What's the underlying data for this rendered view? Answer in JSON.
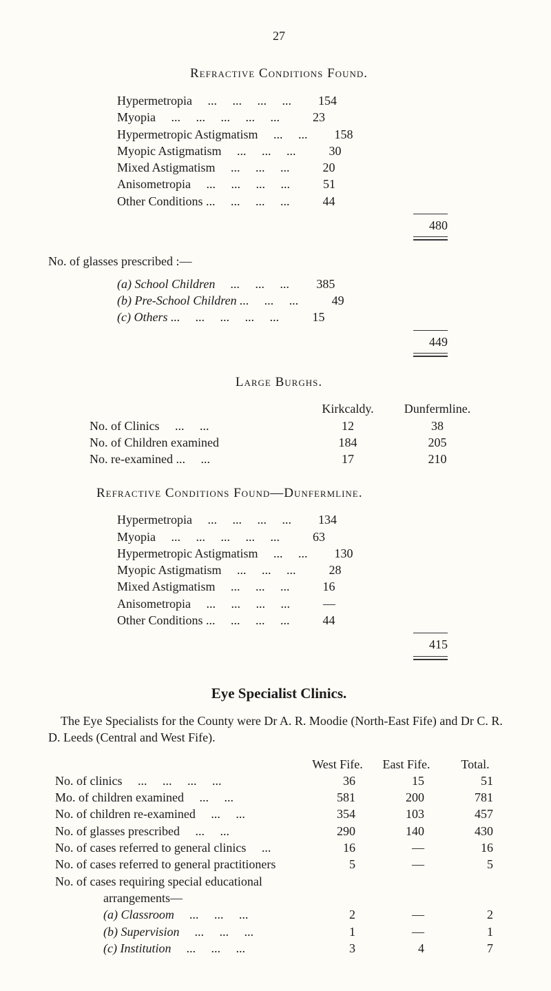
{
  "page_number": "27",
  "refractive1": {
    "title": "Refractive Conditions Found.",
    "rows": [
      {
        "label": "Hypermetropia     ...     ...     ...     ...",
        "val": "154"
      },
      {
        "label": "Myopia     ...     ...     ...     ...     ...",
        "val": "23"
      },
      {
        "label": "Hypermetropic Astigmatism     ...     ...",
        "val": "158"
      },
      {
        "label": "Myopic Astigmatism     ...     ...     ...",
        "val": "30"
      },
      {
        "label": "Mixed Astigmatism     ...     ...     ...",
        "val": "20"
      },
      {
        "label": "Anisometropia     ...     ...     ...     ...",
        "val": "51"
      },
      {
        "label": "Other Conditions ...     ...     ...     ...",
        "val": "44"
      }
    ],
    "total": "480"
  },
  "glasses": {
    "title": "No. of glasses prescribed :—",
    "rows": [
      {
        "label": "(a) School Children     ...     ...     ...",
        "val": "385"
      },
      {
        "label": "(b) Pre-School Children ...     ...     ...",
        "val": "49"
      },
      {
        "label": "(c) Others ...     ...     ...     ...     ...",
        "val": "15"
      }
    ],
    "total": "449"
  },
  "burghs": {
    "title": "Large Burghs.",
    "col1": "Kirkcaldy.",
    "col2": "Dunfermline.",
    "rows": [
      {
        "label": "No. of Clinics     ...     ...",
        "c1": "12",
        "c2": "38"
      },
      {
        "label": "No. of Children examined",
        "c1": "184",
        "c2": "205"
      },
      {
        "label": "No. re-examined ...     ...",
        "c1": "17",
        "c2": "210"
      }
    ]
  },
  "refractive2": {
    "title": "Refractive Conditions Found—Dunfermline.",
    "rows": [
      {
        "label": "Hypermetropia     ...     ...     ...     ...",
        "val": "134"
      },
      {
        "label": "Myopia     ...     ...     ...     ...     ...",
        "val": "63"
      },
      {
        "label": "Hypermetropic Astigmatism     ...     ...",
        "val": "130"
      },
      {
        "label": "Myopic Astigmatism     ...     ...     ...",
        "val": "28"
      },
      {
        "label": "Mixed Astigmatism     ...     ...     ...",
        "val": "16"
      },
      {
        "label": "Anisometropia     ...     ...     ...     ...",
        "val": "—"
      },
      {
        "label": "Other Conditions ...     ...     ...     ...",
        "val": "44"
      }
    ],
    "total": "415"
  },
  "eye": {
    "title": "Eye Specialist Clinics.",
    "para": "The Eye Specialists for the County were Dr A. R. Moodie (North-East Fife) and Dr C. R. D. Leeds (Central and West Fife).",
    "col1": "West Fife.",
    "col2": "East Fife.",
    "col3": "Total.",
    "rows": [
      {
        "label": "No. of clinics     ...     ...     ...     ...",
        "c1": "36",
        "c2": "15",
        "c3": "51"
      },
      {
        "label": "Mo. of children examined     ...     ...",
        "c1": "581",
        "c2": "200",
        "c3": "781"
      },
      {
        "label": "No. of children re-examined     ...     ...",
        "c1": "354",
        "c2": "103",
        "c3": "457"
      },
      {
        "label": "No. of glasses prescribed     ...     ...",
        "c1": "290",
        "c2": "140",
        "c3": "430"
      },
      {
        "label": "No. of cases referred to general clinics     ...",
        "c1": "16",
        "c2": "—",
        "c3": "16"
      },
      {
        "label": "No. of cases referred to general practitioners",
        "c1": "5",
        "c2": "—",
        "c3": "5"
      },
      {
        "label": "No. of cases requiring special educational",
        "c1": "",
        "c2": "",
        "c3": ""
      }
    ],
    "arrangements": "arrangements—",
    "sub": [
      {
        "label": "(a) Classroom     ...     ...     ...",
        "c1": "2",
        "c2": "—",
        "c3": "2"
      },
      {
        "label": "(b) Supervision     ...     ...     ...",
        "c1": "1",
        "c2": "—",
        "c3": "1"
      },
      {
        "label": "(c) Institution     ...     ...     ...",
        "c1": "3",
        "c2": "4",
        "c3": "7"
      }
    ]
  }
}
